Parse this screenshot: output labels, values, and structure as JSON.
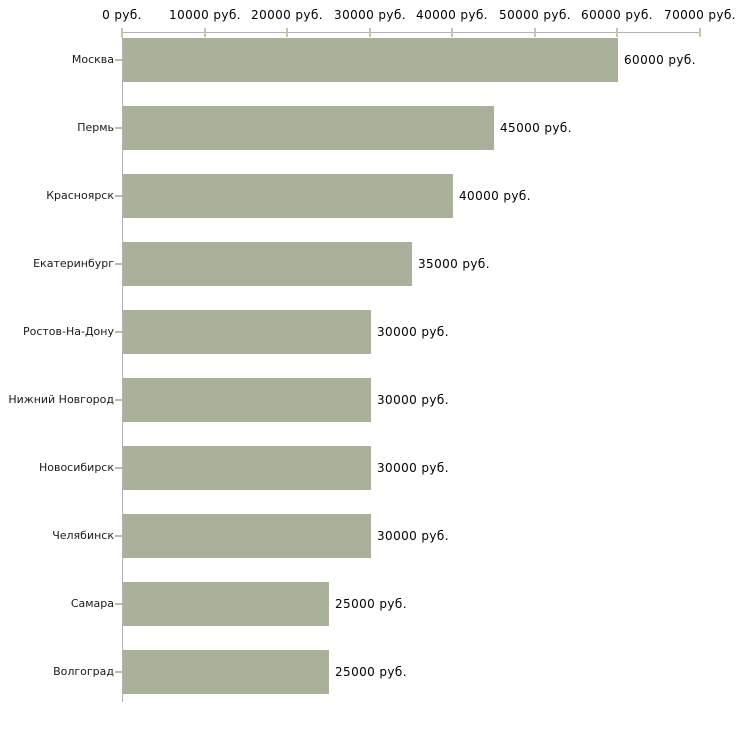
{
  "chart_data": {
    "type": "bar",
    "orientation": "horizontal",
    "title": "",
    "unit": "руб.",
    "categories": [
      "Москва",
      "Пермь",
      "Красноярск",
      "Екатеринбург",
      "Ростов-На-Дону",
      "Нижний Новгород",
      "Новосибирск",
      "Челябинск",
      "Самара",
      "Волгоград"
    ],
    "values": [
      60000,
      45000,
      40000,
      35000,
      30000,
      30000,
      30000,
      30000,
      25000,
      25000
    ],
    "value_labels": [
      "60000 руб.",
      "45000 руб.",
      "40000 руб.",
      "35000 руб.",
      "30000 руб.",
      "30000 руб.",
      "30000 руб.",
      "30000 руб.",
      "25000 руб.",
      "25000 руб."
    ],
    "x_axis": {
      "position": "top",
      "lim": [
        0,
        70000
      ],
      "ticks": [
        0,
        10000,
        20000,
        30000,
        40000,
        50000,
        60000,
        70000
      ],
      "tick_labels": [
        "0 руб.",
        "10000 руб.",
        "20000 руб.",
        "30000 руб.",
        "40000 руб.",
        "50000 руб.",
        "60000 руб.",
        "70000 руб."
      ]
    },
    "grid": false,
    "legend": null,
    "colors": {
      "bar": "#aab19a",
      "axis_line": "#b3b3b3",
      "tick_mark": "#ccc4a6",
      "category_tick": "#c2ba9c",
      "text": "#000000",
      "background": "#ffffff"
    }
  }
}
